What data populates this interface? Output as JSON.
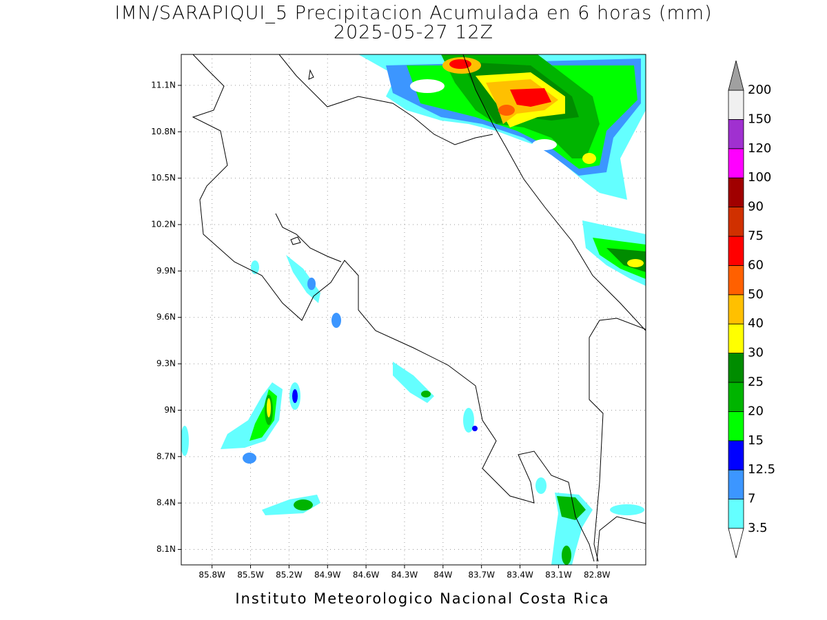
{
  "map": {
    "title": "IMN/SARAPIQUI_5 Precipitacion Acumulada en 6 horas (mm)",
    "subtitle": "2025-05-27 12Z",
    "footer": "Instituto Meteorologico Nacional Costa Rica",
    "xlim": [
      -86.04,
      -82.42
    ],
    "ylim": [
      8.0,
      11.3
    ],
    "xticks": [
      {
        "value": -85.8,
        "label": "85.8W"
      },
      {
        "value": -85.5,
        "label": "85.5W"
      },
      {
        "value": -85.2,
        "label": "85.2W"
      },
      {
        "value": -84.9,
        "label": "84.9W"
      },
      {
        "value": -84.6,
        "label": "84.6W"
      },
      {
        "value": -84.3,
        "label": "84.3W"
      },
      {
        "value": -84.0,
        "label": "84W"
      },
      {
        "value": -83.7,
        "label": "83.7W"
      },
      {
        "value": -83.4,
        "label": "83.4W"
      },
      {
        "value": -83.1,
        "label": "83.1W"
      },
      {
        "value": -82.8,
        "label": "82.8W"
      }
    ],
    "yticks": [
      {
        "value": 11.1,
        "label": "11.1N"
      },
      {
        "value": 10.8,
        "label": "10.8N"
      },
      {
        "value": 10.5,
        "label": "10.5N"
      },
      {
        "value": 10.2,
        "label": "10.2N"
      },
      {
        "value": 9.9,
        "label": "9.9N"
      },
      {
        "value": 9.6,
        "label": "9.6N"
      },
      {
        "value": 9.3,
        "label": "9.3N"
      },
      {
        "value": 9.0,
        "label": "9N"
      },
      {
        "value": 8.7,
        "label": "8.7N"
      },
      {
        "value": 8.4,
        "label": "8.4N"
      },
      {
        "value": 8.1,
        "label": "8.1N"
      }
    ],
    "grid": true,
    "colorbar": {
      "levels": [
        3.5,
        7,
        12.5,
        15,
        20,
        25,
        30,
        40,
        50,
        60,
        75,
        90,
        100,
        120,
        150,
        200
      ],
      "colors": [
        "#64ffff",
        "#3c96ff",
        "#0000ff",
        "#00ff00",
        "#00b400",
        "#008c00",
        "#ffff00",
        "#ffc000",
        "#ff6000",
        "#ff0000",
        "#d03000",
        "#a00000",
        "#ff00ff",
        "#a030d0",
        "#f0f0f0"
      ],
      "under_color": "#ffffff",
      "over_color": "#a0a0a0"
    }
  }
}
